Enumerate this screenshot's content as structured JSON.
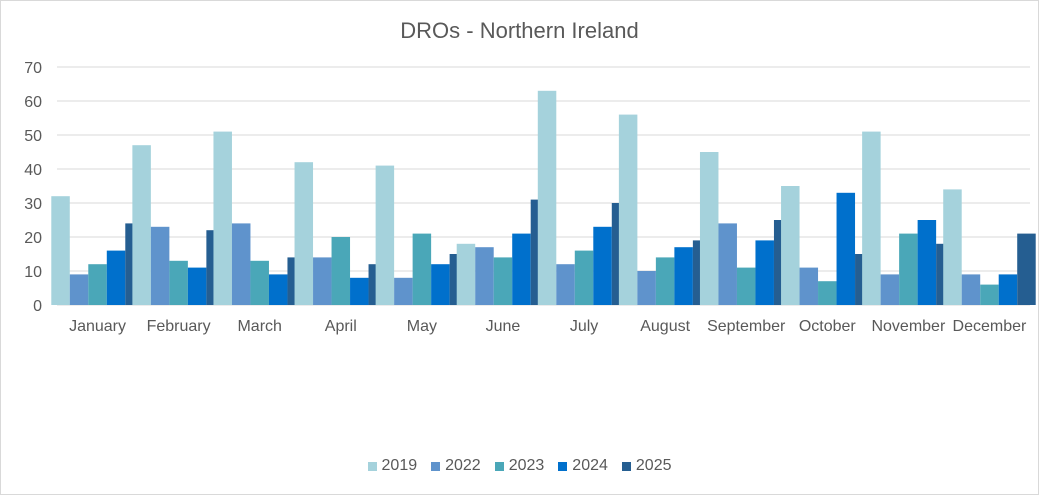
{
  "chart_data": {
    "type": "bar",
    "title": "DROs - Northern Ireland",
    "xlabel": "",
    "ylabel": "",
    "ylim": [
      0,
      70
    ],
    "yticks": [
      0,
      10,
      20,
      30,
      40,
      50,
      60,
      70
    ],
    "grid": true,
    "legend_position": "bottom",
    "categories": [
      "January",
      "February",
      "March",
      "April",
      "May",
      "June",
      "July",
      "August",
      "September",
      "October",
      "November",
      "December"
    ],
    "series": [
      {
        "name": "2019",
        "color": "#a5d2dc",
        "values": [
          32,
          47,
          51,
          42,
          41,
          18,
          63,
          56,
          45,
          35,
          51,
          34
        ]
      },
      {
        "name": "2022",
        "color": "#5f93cc",
        "values": [
          9,
          23,
          24,
          14,
          8,
          17,
          12,
          10,
          24,
          11,
          9,
          9
        ]
      },
      {
        "name": "2023",
        "color": "#4aa7b8",
        "values": [
          12,
          13,
          13,
          20,
          21,
          14,
          16,
          14,
          11,
          7,
          21,
          6
        ]
      },
      {
        "name": "2024",
        "color": "#0070cc",
        "values": [
          16,
          11,
          9,
          8,
          12,
          21,
          23,
          17,
          19,
          33,
          25,
          9
        ]
      },
      {
        "name": "2025",
        "color": "#255e91",
        "values": [
          24,
          22,
          14,
          12,
          15,
          31,
          30,
          19,
          25,
          15,
          18,
          21
        ]
      }
    ]
  }
}
